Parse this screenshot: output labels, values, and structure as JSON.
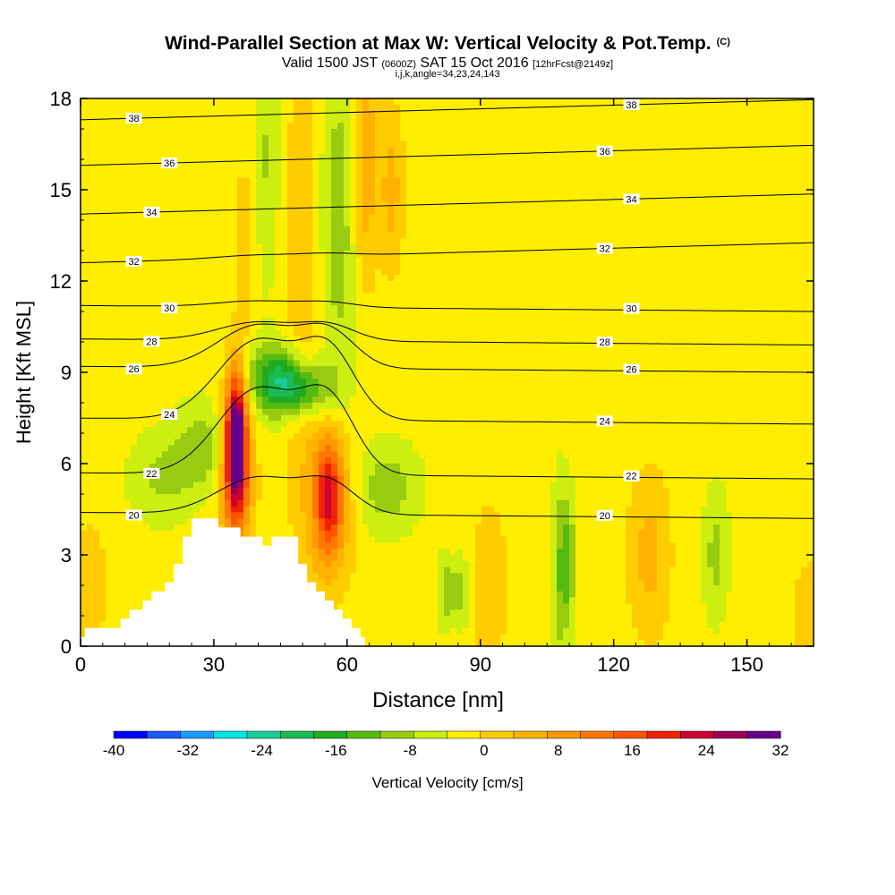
{
  "title": {
    "main": "Wind-Parallel Section at Max W: Vertical Velocity & Pot.Temp.",
    "copyright": "(C)",
    "valid_prefix": "Valid 1500 JST",
    "valid_utc": "(0600Z)",
    "valid_date": "SAT 15 Oct 2016",
    "forecast": "[12hrFcst@2149z]",
    "indices": "i,j,k,angle=34,23,24,143"
  },
  "chart_data": {
    "type": "heatmap",
    "xlabel": "Distance [nm]",
    "ylabel": "Height [Kft MSL]",
    "xlim": [
      0,
      165
    ],
    "ylim": [
      0,
      18
    ],
    "xticks": [
      "0",
      "30",
      "60",
      "90",
      "120",
      "150"
    ],
    "yticks": [
      "0",
      "3",
      "6",
      "9",
      "12",
      "15",
      "18"
    ],
    "colorbar": {
      "label": "Vertical Velocity [cm/s]",
      "ticks": [
        "-40",
        "-32",
        "-24",
        "-16",
        "-8",
        "0",
        "8",
        "16",
        "24",
        "32"
      ],
      "range": [
        -40,
        32
      ],
      "step": 4,
      "colors": [
        "#0000ff",
        "#1a5cff",
        "#1a99ff",
        "#00e5e5",
        "#1acc99",
        "#1abb55",
        "#22aa22",
        "#55bb11",
        "#99cc11",
        "#ccee11",
        "#ffee00",
        "#ffcc00",
        "#ffb300",
        "#ff9900",
        "#ff7700",
        "#ff5500",
        "#ee2200",
        "#cc0033",
        "#990055",
        "#660088"
      ]
    },
    "terrain": [
      [
        0,
        0.3
      ],
      [
        1,
        0.3
      ],
      [
        1,
        0.6
      ],
      [
        3,
        0.6
      ],
      [
        3,
        0.6
      ],
      [
        5,
        0.6
      ],
      [
        7,
        0.6
      ],
      [
        9,
        0.6
      ],
      [
        9,
        0.9
      ],
      [
        11,
        0.9
      ],
      [
        11,
        1.2
      ],
      [
        14,
        1.2
      ],
      [
        14,
        1.5
      ],
      [
        16,
        1.5
      ],
      [
        16,
        1.8
      ],
      [
        19,
        1.8
      ],
      [
        19,
        2.1
      ],
      [
        21,
        2.1
      ],
      [
        21,
        2.7
      ],
      [
        23,
        2.7
      ],
      [
        23,
        3.6
      ],
      [
        25,
        3.6
      ],
      [
        25,
        4.2
      ],
      [
        31,
        4.2
      ],
      [
        31,
        3.9
      ],
      [
        36,
        3.9
      ],
      [
        36,
        3.6
      ],
      [
        41,
        3.6
      ],
      [
        41,
        3.3
      ],
      [
        43,
        3.3
      ],
      [
        43,
        3.6
      ],
      [
        49,
        3.6
      ],
      [
        49,
        2.7
      ],
      [
        51,
        2.7
      ],
      [
        51,
        2.1
      ],
      [
        53,
        2.1
      ],
      [
        53,
        1.8
      ],
      [
        55,
        1.8
      ],
      [
        55,
        1.5
      ],
      [
        57,
        1.5
      ],
      [
        57,
        1.2
      ],
      [
        59,
        1.2
      ],
      [
        59,
        0.9
      ],
      [
        61,
        0.9
      ],
      [
        61,
        0.6
      ],
      [
        63,
        0.6
      ],
      [
        63,
        0.3
      ],
      [
        64,
        0.3
      ],
      [
        64,
        0
      ]
    ],
    "theta_contours": [
      {
        "label": "20",
        "level": 4.3,
        "bump": 1.2
      },
      {
        "label": "22",
        "level": 5.6,
        "bump": 2.8
      },
      {
        "label": "24",
        "level": 7.4,
        "bump": 2.6
      },
      {
        "label": "26",
        "level": 9.1,
        "bump": 1.4
      },
      {
        "label": "28",
        "level": 10.0,
        "bump": 0.6
      },
      {
        "label": "30",
        "level": 11.1,
        "bump": 0.2
      },
      {
        "label": "32",
        "level": 12.6,
        "bump": 0.1
      },
      {
        "label": "34",
        "level": 14.2,
        "bump": 0
      },
      {
        "label": "36",
        "level": 15.8,
        "bump": 0
      },
      {
        "label": "38",
        "level": 17.3,
        "bump": 0
      }
    ]
  }
}
